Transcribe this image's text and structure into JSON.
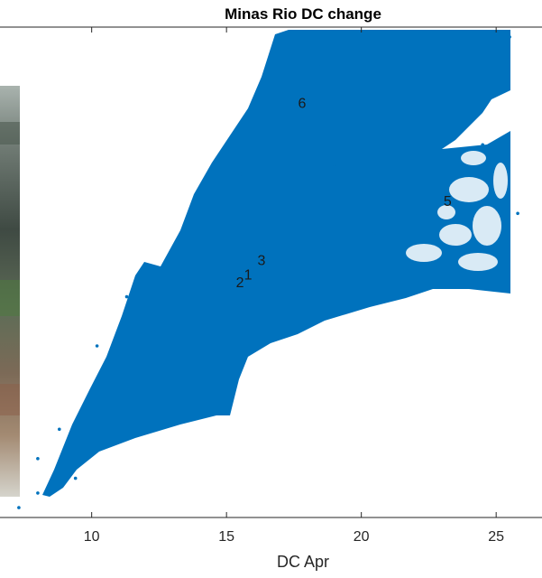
{
  "chart_data": {
    "type": "scatter",
    "title": "Minas Rio DC change",
    "xlabel": "DC Apr",
    "ylabel": "",
    "xlim": [
      6.6,
      26.7
    ],
    "ylim": [
      0,
      1
    ],
    "xticks": [
      10,
      15,
      20,
      25
    ],
    "grid": false,
    "legend": "none",
    "marker_color": "#0072BD",
    "series": [
      {
        "values": [
          [
            7.3,
            0.02
          ],
          [
            8.0,
            0.05
          ],
          [
            8.0,
            0.12
          ],
          [
            8.8,
            0.18
          ],
          [
            9.4,
            0.08
          ],
          [
            10.1,
            0.2
          ],
          [
            10.2,
            0.35
          ],
          [
            11.0,
            0.28
          ],
          [
            11.3,
            0.45
          ],
          [
            12.3,
            0.38
          ],
          [
            13.0,
            0.52
          ],
          [
            14.0,
            0.25
          ],
          [
            14.2,
            0.6
          ],
          [
            15.0,
            0.46
          ],
          [
            15.5,
            0.7
          ],
          [
            16.0,
            0.52
          ],
          [
            17.0,
            0.85
          ],
          [
            17.5,
            0.6
          ],
          [
            18.5,
            0.92
          ],
          [
            19.0,
            0.72
          ],
          [
            20.0,
            0.95
          ],
          [
            20.5,
            0.58
          ],
          [
            21.0,
            0.8
          ],
          [
            22.0,
            0.62
          ],
          [
            22.5,
            0.94
          ],
          [
            23.0,
            0.73
          ],
          [
            24.0,
            0.9
          ],
          [
            24.5,
            0.76
          ],
          [
            25.5,
            0.98
          ],
          [
            25.8,
            0.62
          ]
        ]
      }
    ],
    "annotations": [
      {
        "text": "6",
        "x": 17.8,
        "y": 0.835
      },
      {
        "text": "5",
        "x": 23.2,
        "y": 0.635
      },
      {
        "text": "3",
        "x": 16.3,
        "y": 0.515
      },
      {
        "text": "1",
        "x": 15.8,
        "y": 0.485
      },
      {
        "text": "2",
        "x": 15.5,
        "y": 0.47
      }
    ]
  }
}
